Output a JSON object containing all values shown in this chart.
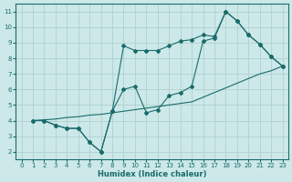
{
  "xlabel": "Humidex (Indice chaleur)",
  "bg_color": "#cce8e8",
  "line_color": "#1a6b6b",
  "grid_color": "#aacccc",
  "xlim": [
    -0.5,
    23.5
  ],
  "ylim": [
    1.5,
    11.5
  ],
  "xticks": [
    0,
    1,
    2,
    3,
    4,
    5,
    6,
    7,
    8,
    9,
    10,
    11,
    12,
    13,
    14,
    15,
    16,
    17,
    18,
    19,
    20,
    21,
    22,
    23
  ],
  "yticks": [
    2,
    3,
    4,
    5,
    6,
    7,
    8,
    9,
    10,
    11
  ],
  "line1_x": [
    1,
    2,
    3,
    4,
    5,
    6,
    7,
    8,
    9,
    10,
    11,
    12,
    13,
    14,
    15,
    16,
    17,
    18,
    19,
    20,
    21,
    22,
    23
  ],
  "line1_y": [
    4.0,
    4.0,
    3.7,
    3.5,
    3.5,
    2.6,
    2.0,
    4.6,
    8.8,
    8.5,
    8.5,
    8.5,
    8.8,
    9.1,
    9.2,
    9.5,
    9.4,
    11.0,
    10.4,
    9.5,
    8.9,
    8.1,
    7.5
  ],
  "line2_x": [
    1,
    2,
    3,
    4,
    5,
    6,
    7,
    8,
    9,
    10,
    11,
    12,
    13,
    14,
    15,
    16,
    17,
    18,
    19,
    20,
    21,
    22,
    23
  ],
  "line2_y": [
    4.0,
    4.05,
    4.1,
    4.2,
    4.25,
    4.35,
    4.4,
    4.5,
    4.6,
    4.7,
    4.8,
    4.9,
    5.0,
    5.1,
    5.2,
    5.5,
    5.8,
    6.1,
    6.4,
    6.7,
    7.0,
    7.2,
    7.5
  ],
  "line3_x": [
    1,
    2,
    3,
    4,
    5,
    6,
    7,
    8,
    9,
    10,
    11,
    12,
    13,
    14,
    15,
    16,
    17,
    18,
    19,
    20,
    21,
    22,
    23
  ],
  "line3_y": [
    4.0,
    4.0,
    3.7,
    3.5,
    3.5,
    2.6,
    2.0,
    4.6,
    6.0,
    6.2,
    4.5,
    4.7,
    5.6,
    5.8,
    6.2,
    9.1,
    9.3,
    11.0,
    10.4,
    9.5,
    8.9,
    8.1,
    7.5
  ]
}
